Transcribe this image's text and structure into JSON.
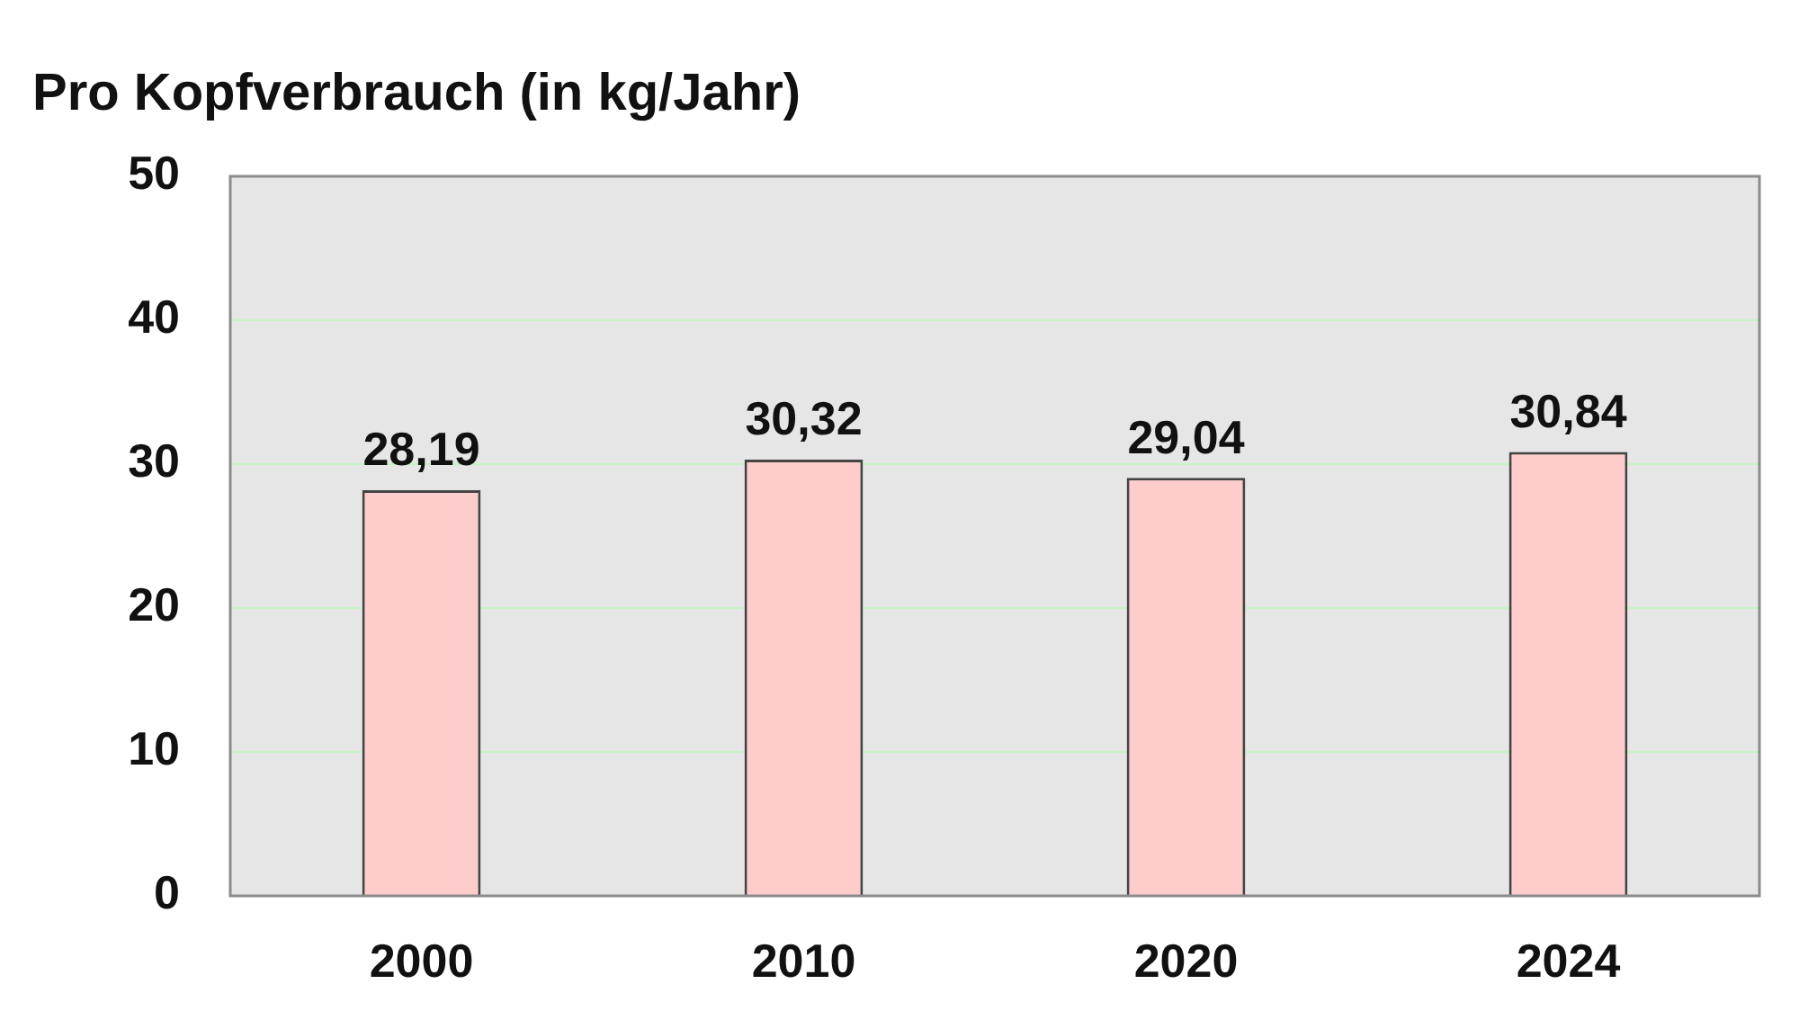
{
  "chart_data": {
    "type": "bar",
    "title": "Pro Kopfverbrauch (in kg/Jahr)",
    "categories": [
      "2000",
      "2010",
      "2020",
      "2024"
    ],
    "values": [
      28.19,
      30.32,
      29.04,
      30.84
    ],
    "value_labels": [
      "28,19",
      "30,32",
      "29,04",
      "30,84"
    ],
    "color": "#ffcccc",
    "ylim": [
      0,
      50
    ],
    "yticks": [
      0,
      10,
      20,
      30,
      40,
      50
    ],
    "grid": "y",
    "legend": false
  }
}
